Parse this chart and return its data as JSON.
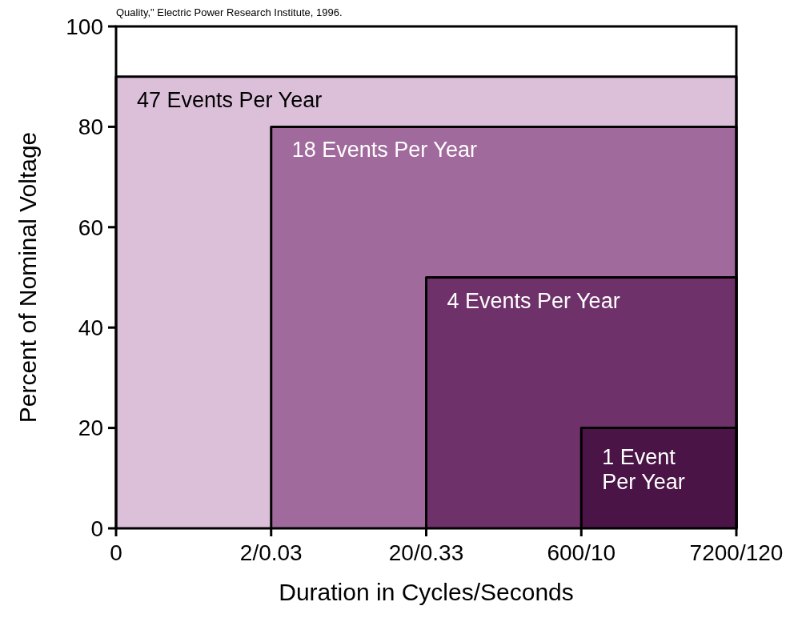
{
  "chart_data": {
    "type": "area",
    "xlabel": "Duration in Cycles/Seconds",
    "ylabel": "Percent of Nominal Voltage",
    "annotations": [
      "Quality,\" Electric Power Research Institute, 1996."
    ],
    "categories": [
      "0",
      "2/0.03",
      "20/0.33",
      "600/10",
      "7200/120"
    ],
    "ylim": [
      0,
      100
    ],
    "yticks": [
      0,
      20,
      40,
      60,
      80,
      100
    ],
    "series": [
      {
        "name": "47 Events Per Year",
        "color": "#dcc0da",
        "values": [
          90,
          90,
          90,
          90,
          90
        ]
      },
      {
        "name": "18 Events Per Year",
        "color": "#a06a9c",
        "values": [
          null,
          80,
          80,
          80,
          80
        ]
      },
      {
        "name": "4 Events Per Year",
        "color": "#6e3169",
        "values": [
          null,
          null,
          50,
          50,
          50
        ]
      },
      {
        "name": "1 Event Per Year",
        "color": "#4a1447",
        "values": [
          null,
          null,
          null,
          20,
          20
        ]
      }
    ]
  }
}
